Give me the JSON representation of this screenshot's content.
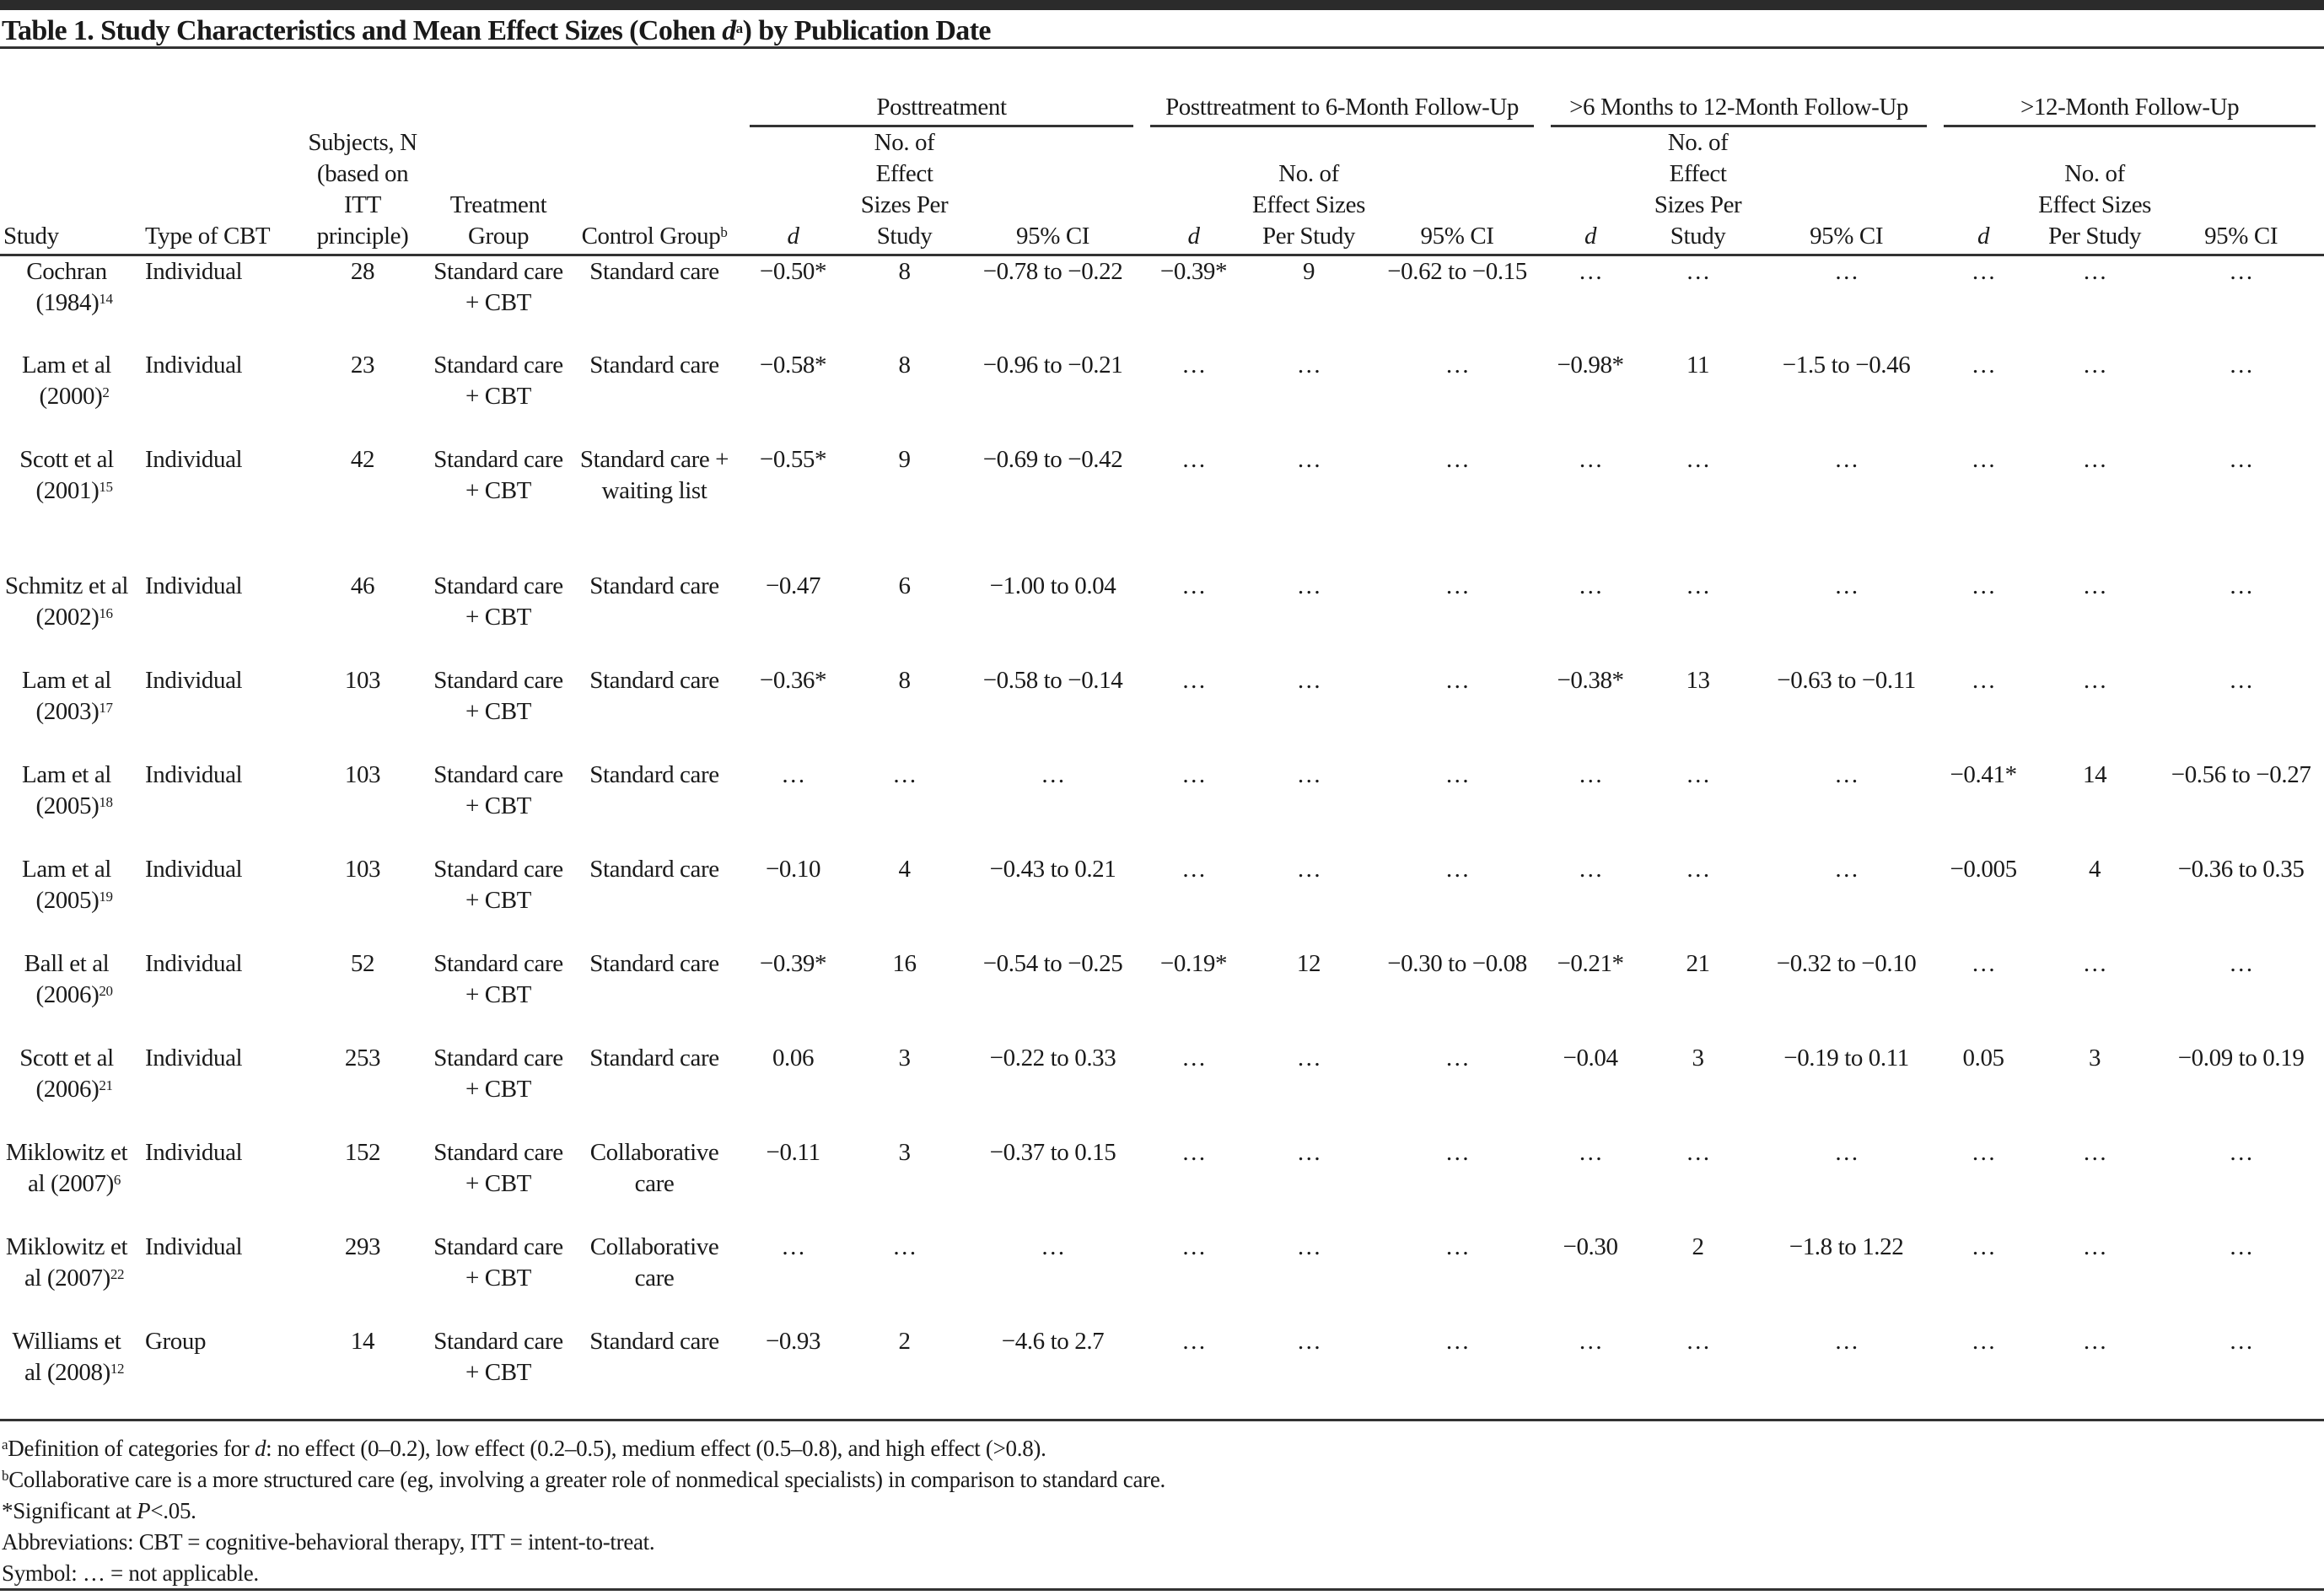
{
  "title": {
    "prefix": "Table 1. Study Characteristics and Mean Effect Sizes (Cohen ",
    "italic": "d",
    "sup": "a",
    "suffix": ") by Publication Date"
  },
  "headers": {
    "groups": [
      "Posttreatment",
      "Posttreatment to 6-Month Follow-Up",
      ">6 Months to 12-Month Follow-Up",
      ">12-Month Follow-Up"
    ],
    "study": "Study",
    "type": "Type of CBT",
    "subjects": "Subjects, N (based on ITT principle)",
    "treatment": "Treatment Group",
    "control": "Control Group",
    "control_sup": "b",
    "d": "d",
    "k": "No. of Effect Sizes Per Study",
    "ci": "95% CI"
  },
  "rows": [
    {
      "study": "Cochran (1984)",
      "ref": "14",
      "type": "Individual",
      "n": "28",
      "treatment": "Standard care + CBT",
      "control": "Standard care",
      "g": [
        [
          "−0.50*",
          "8",
          "−0.78 to −0.22"
        ],
        [
          "−0.39*",
          "9",
          "−0.62 to −0.15"
        ],
        [
          "…",
          "…",
          "…"
        ],
        [
          "…",
          "…",
          "…"
        ]
      ]
    },
    {
      "study": "Lam et al (2000)",
      "ref": "2",
      "type": "Individual",
      "n": "23",
      "treatment": "Standard care + CBT",
      "control": "Standard care",
      "g": [
        [
          "−0.58*",
          "8",
          "−0.96 to −0.21"
        ],
        [
          "…",
          "…",
          "…"
        ],
        [
          "−0.98*",
          "11",
          "−1.5 to −0.46"
        ],
        [
          "…",
          "…",
          "…"
        ]
      ]
    },
    {
      "study": "Scott et al (2001)",
      "ref": "15",
      "type": "Individual",
      "n": "42",
      "treatment": "Standard care + CBT",
      "control": "Standard care + waiting list",
      "g": [
        [
          "−0.55*",
          "9",
          "−0.69 to −0.42"
        ],
        [
          "…",
          "…",
          "…"
        ],
        [
          "…",
          "…",
          "…"
        ],
        [
          "…",
          "…",
          "…"
        ]
      ]
    },
    {
      "study": "Schmitz et al (2002)",
      "ref": "16",
      "type": "Individual",
      "n": "46",
      "treatment": "Standard care + CBT",
      "control": "Standard care",
      "g": [
        [
          "−0.47",
          "6",
          "−1.00 to 0.04"
        ],
        [
          "…",
          "…",
          "…"
        ],
        [
          "…",
          "…",
          "…"
        ],
        [
          "…",
          "…",
          "…"
        ]
      ]
    },
    {
      "study": "Lam et al (2003)",
      "ref": "17",
      "type": "Individual",
      "n": "103",
      "treatment": "Standard care + CBT",
      "control": "Standard care",
      "g": [
        [
          "−0.36*",
          "8",
          "−0.58 to −0.14"
        ],
        [
          "…",
          "…",
          "…"
        ],
        [
          "−0.38*",
          "13",
          "−0.63 to −0.11"
        ],
        [
          "…",
          "…",
          "…"
        ]
      ]
    },
    {
      "study": "Lam et al (2005)",
      "ref": "18",
      "type": "Individual",
      "n": "103",
      "treatment": "Standard care + CBT",
      "control": "Standard care",
      "g": [
        [
          "…",
          "…",
          "…"
        ],
        [
          "…",
          "…",
          "…"
        ],
        [
          "…",
          "…",
          "…"
        ],
        [
          "−0.41*",
          "14",
          "−0.56 to −0.27"
        ]
      ]
    },
    {
      "study": "Lam et al (2005)",
      "ref": "19",
      "type": "Individual",
      "n": "103",
      "treatment": "Standard care + CBT",
      "control": "Standard care",
      "g": [
        [
          "−0.10",
          "4",
          "−0.43 to 0.21"
        ],
        [
          "…",
          "…",
          "…"
        ],
        [
          "…",
          "…",
          "…"
        ],
        [
          "−0.005",
          "4",
          "−0.36 to 0.35"
        ]
      ]
    },
    {
      "study": "Ball et al (2006)",
      "ref": "20",
      "type": "Individual",
      "n": "52",
      "treatment": "Standard care + CBT",
      "control": "Standard care",
      "g": [
        [
          "−0.39*",
          "16",
          "−0.54 to −0.25"
        ],
        [
          "−0.19*",
          "12",
          "−0.30 to −0.08"
        ],
        [
          "−0.21*",
          "21",
          "−0.32 to −0.10"
        ],
        [
          "…",
          "…",
          "…"
        ]
      ]
    },
    {
      "study": "Scott et al (2006)",
      "ref": "21",
      "type": "Individual",
      "n": "253",
      "treatment": "Standard care + CBT",
      "control": "Standard care",
      "g": [
        [
          "0.06",
          "3",
          "−0.22 to 0.33"
        ],
        [
          "…",
          "…",
          "…"
        ],
        [
          "−0.04",
          "3",
          "−0.19 to 0.11"
        ],
        [
          "0.05",
          "3",
          "−0.09 to 0.19"
        ]
      ]
    },
    {
      "study": "Miklowitz et al (2007)",
      "ref": "6",
      "type": "Individual",
      "n": "152",
      "treatment": "Standard care + CBT",
      "control": "Collaborative care",
      "g": [
        [
          "−0.11",
          "3",
          "−0.37 to 0.15"
        ],
        [
          "…",
          "…",
          "…"
        ],
        [
          "…",
          "…",
          "…"
        ],
        [
          "…",
          "…",
          "…"
        ]
      ]
    },
    {
      "study": "Miklowitz et al (2007)",
      "ref": "22",
      "type": "Individual",
      "n": "293",
      "treatment": "Standard care + CBT",
      "control": "Collaborative care",
      "g": [
        [
          "…",
          "…",
          "…"
        ],
        [
          "…",
          "…",
          "…"
        ],
        [
          "−0.30",
          "2",
          "−1.8 to 1.22"
        ],
        [
          "…",
          "…",
          "…"
        ]
      ]
    },
    {
      "study": "Williams et al (2008)",
      "ref": "12",
      "type": "Group",
      "n": "14",
      "treatment": "Standard care + CBT",
      "control": "Standard care",
      "g": [
        [
          "−0.93",
          "2",
          "−4.6 to 2.7"
        ],
        [
          "…",
          "…",
          "…"
        ],
        [
          "…",
          "…",
          "…"
        ],
        [
          "…",
          "…",
          "…"
        ]
      ]
    }
  ],
  "footnotes": [
    {
      "mark": "a",
      "parts": [
        [
          "Definition of categories for ",
          ""
        ],
        [
          "d",
          "i"
        ],
        [
          ": no effect (0–0.2), low effect (0.2–0.5), medium effect (0.5–0.8), and high effect (>0.8).",
          ""
        ]
      ]
    },
    {
      "mark": "b",
      "parts": [
        [
          "Collaborative care is a more structured care (eg, involving a greater role of nonmedical specialists) in comparison to standard care.",
          ""
        ]
      ]
    },
    {
      "mark": "",
      "parts": [
        [
          "*Significant at ",
          ""
        ],
        [
          "P",
          "i"
        ],
        [
          "<.05.",
          ""
        ]
      ]
    },
    {
      "mark": "",
      "parts": [
        [
          "Abbreviations: CBT = cognitive-behavioral therapy, ITT = intent-to-treat.",
          ""
        ]
      ]
    },
    {
      "mark": "",
      "parts": [
        [
          "Symbol: … = not applicable.",
          ""
        ]
      ]
    }
  ]
}
